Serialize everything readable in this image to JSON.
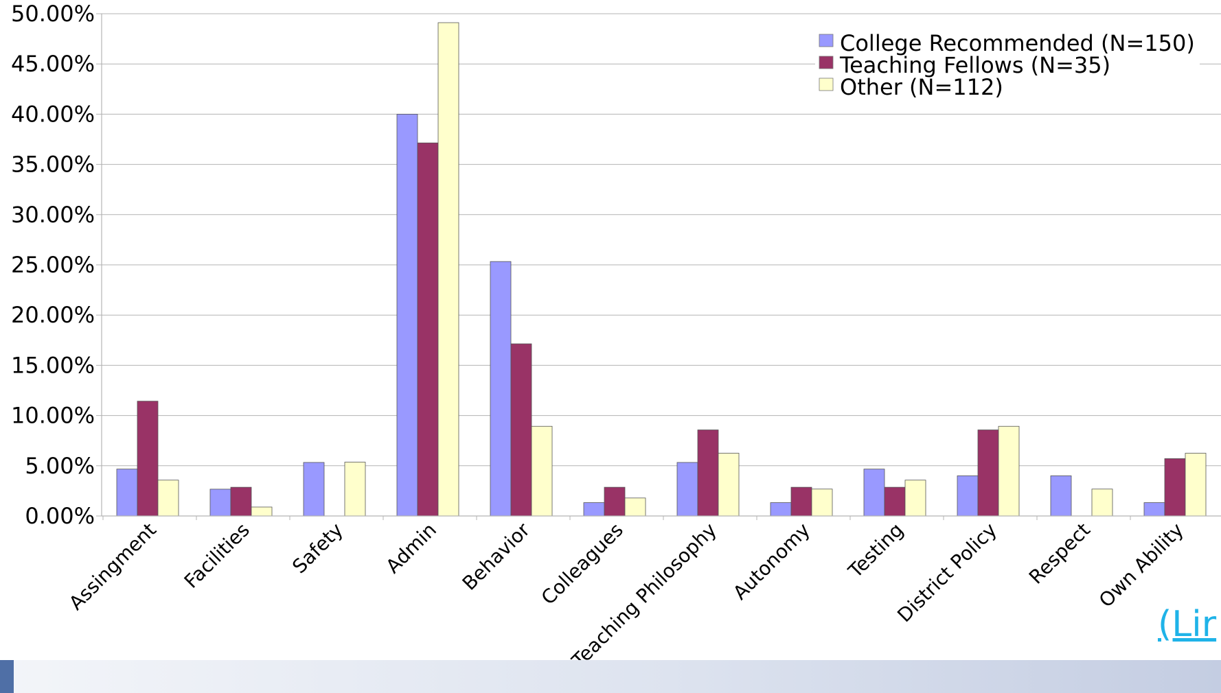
{
  "chart_data": {
    "type": "bar",
    "categories": [
      "Assingment",
      "Facilities",
      "Safety",
      "Admin",
      "Behavior",
      "Colleagues",
      "Teaching Philosophy",
      "Autonomy",
      "Testing",
      "District Policy",
      "Respect",
      "Own Ability"
    ],
    "series": [
      {
        "name": "College Recommended (N=150)",
        "color": "#9999ff",
        "values": [
          4.67,
          2.67,
          5.33,
          40.0,
          25.33,
          1.33,
          5.33,
          1.33,
          4.67,
          4.0,
          4.0,
          1.33
        ]
      },
      {
        "name": "Teaching Fellows (N=35)",
        "color": "#993366",
        "values": [
          11.43,
          2.86,
          0.0,
          37.14,
          17.14,
          2.86,
          8.57,
          2.86,
          2.86,
          8.57,
          0.0,
          5.71
        ]
      },
      {
        "name": "Other (N=112)",
        "color": "#ffffcc",
        "values": [
          3.57,
          0.89,
          5.36,
          49.11,
          8.93,
          1.79,
          6.25,
          2.68,
          3.57,
          8.93,
          2.68,
          6.25
        ]
      }
    ],
    "y_ticks": [
      "0.00%",
      "5.00%",
      "10.00%",
      "15.00%",
      "20.00%",
      "25.00%",
      "30.00%",
      "35.00%",
      "40.00%",
      "45.00%",
      "50.00%"
    ],
    "ylim": [
      0,
      50
    ],
    "grid": true,
    "legend": "top-right"
  },
  "link_text": "(Lir"
}
